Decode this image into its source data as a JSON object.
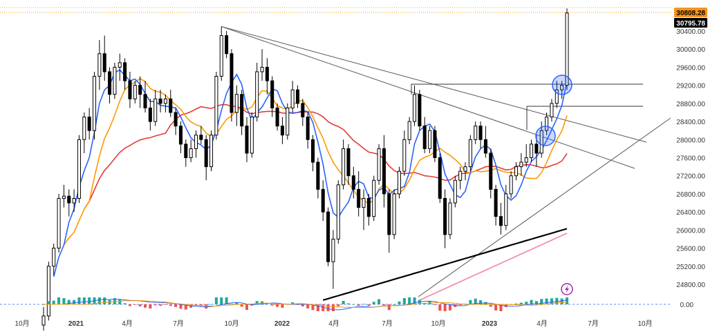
{
  "chart_data": {
    "type": "candlestick",
    "y_ticks": [
      "30400.00",
      "30000.00",
      "29600.00",
      "29200.00",
      "28800.00",
      "28400.00",
      "28000.00",
      "27600.00",
      "27200.00",
      "26800.00",
      "26400.00",
      "26000.00",
      "25600.00",
      "25200.00",
      "24800.00"
    ],
    "x_ticks": [
      "10月",
      "2021",
      "4月",
      "7月",
      "10月",
      "2022",
      "4月",
      "7月",
      "10月",
      "2023",
      "4月",
      "7月",
      "10月"
    ],
    "price_labels": [
      {
        "text": "30808.28",
        "value": 30808.28,
        "color": "#f7931a",
        "text_color": "#000000"
      },
      {
        "text": "30795.78",
        "value": 30795.78,
        "color": "#000000",
        "text_color": "#ffffff"
      }
    ],
    "indicator_zero_label": "0.00",
    "lightning_icon_color": "#9c27b0",
    "series_colors": {
      "ma_fast": "#2962ff",
      "ma_mid": "#ff9800",
      "ma_slow": "#e53935",
      "ma_long": "#000000",
      "ma_pink": "#f48fb1",
      "candle": "#000000"
    },
    "candles": [
      [
        23900,
        24300,
        23700,
        24100
      ],
      [
        24100,
        25300,
        24000,
        25200
      ],
      [
        25200,
        25700,
        25000,
        25600
      ],
      [
        25600,
        26800,
        25500,
        26700
      ],
      [
        26700,
        27000,
        26500,
        26750
      ],
      [
        26750,
        26900,
        26300,
        26600
      ],
      [
        26600,
        26900,
        26400,
        26700
      ],
      [
        26700,
        28100,
        26600,
        28000
      ],
      [
        28000,
        28600,
        27700,
        28500
      ],
      [
        28500,
        28700,
        28000,
        28200
      ],
      [
        28200,
        29500,
        28000,
        29400
      ],
      [
        29400,
        30200,
        29100,
        29900
      ],
      [
        29900,
        30300,
        29300,
        29500
      ],
      [
        29500,
        29600,
        28800,
        29000
      ],
      [
        29000,
        29700,
        28900,
        29600
      ],
      [
        29600,
        29900,
        29300,
        29700
      ],
      [
        29700,
        29800,
        29100,
        29300
      ],
      [
        29300,
        29500,
        28700,
        28900
      ],
      [
        28900,
        29300,
        28800,
        29200
      ],
      [
        29200,
        29400,
        28700,
        29000
      ],
      [
        29000,
        29300,
        28600,
        28700
      ],
      [
        28700,
        28900,
        28200,
        28400
      ],
      [
        28400,
        29100,
        28300,
        28900
      ],
      [
        28900,
        29100,
        28600,
        28800
      ],
      [
        28800,
        29000,
        28600,
        28900
      ],
      [
        28900,
        29100,
        28500,
        28600
      ],
      [
        28600,
        28700,
        28100,
        28300
      ],
      [
        28300,
        28400,
        27700,
        27900
      ],
      [
        27900,
        28000,
        27400,
        27600
      ],
      [
        27600,
        28000,
        27500,
        27800
      ],
      [
        27800,
        28200,
        27600,
        28100
      ],
      [
        28100,
        28300,
        27900,
        28000
      ],
      [
        28000,
        28100,
        27100,
        27400
      ],
      [
        27400,
        28200,
        27300,
        28100
      ],
      [
        28100,
        29500,
        28000,
        29400
      ],
      [
        29400,
        30500,
        29300,
        30300
      ],
      [
        30300,
        30400,
        29800,
        29900
      ],
      [
        29900,
        30000,
        28400,
        28600
      ],
      [
        28600,
        29200,
        28300,
        29000
      ],
      [
        29000,
        29100,
        28100,
        28300
      ],
      [
        28300,
        28500,
        27500,
        27700
      ],
      [
        27700,
        28600,
        27600,
        28500
      ],
      [
        28500,
        29700,
        28400,
        29500
      ],
      [
        29500,
        30000,
        29300,
        29600
      ],
      [
        29600,
        29800,
        29000,
        29300
      ],
      [
        29300,
        29400,
        28500,
        28700
      ],
      [
        28700,
        28800,
        28200,
        28300
      ],
      [
        28300,
        28500,
        27900,
        28100
      ],
      [
        28100,
        28800,
        28000,
        28700
      ],
      [
        28700,
        29300,
        28600,
        29100
      ],
      [
        29100,
        29200,
        28700,
        28800
      ],
      [
        28800,
        28900,
        28300,
        28500
      ],
      [
        28500,
        28600,
        27800,
        28000
      ],
      [
        28000,
        28100,
        27300,
        27500
      ],
      [
        27500,
        27600,
        26700,
        26900
      ],
      [
        26900,
        27100,
        26200,
        26400
      ],
      [
        26400,
        26500,
        25200,
        25300
      ],
      [
        25300,
        26000,
        24700,
        25800
      ],
      [
        25800,
        27100,
        25700,
        27000
      ],
      [
        27000,
        28000,
        26900,
        27800
      ],
      [
        27800,
        27900,
        27000,
        27200
      ],
      [
        27200,
        27400,
        26700,
        26900
      ],
      [
        26900,
        27300,
        26300,
        26500
      ],
      [
        26500,
        26900,
        26000,
        26700
      ],
      [
        26700,
        26800,
        26100,
        26300
      ],
      [
        26300,
        27200,
        26200,
        27100
      ],
      [
        27100,
        27900,
        27000,
        27800
      ],
      [
        27800,
        28100,
        26500,
        26800
      ],
      [
        26800,
        26900,
        25500,
        25900
      ],
      [
        25900,
        26900,
        25800,
        26800
      ],
      [
        26800,
        27400,
        26700,
        27300
      ],
      [
        27300,
        28200,
        27200,
        28000
      ],
      [
        28000,
        28500,
        27900,
        28400
      ],
      [
        28400,
        29200,
        28300,
        29000
      ],
      [
        29000,
        29100,
        28200,
        28300
      ],
      [
        28300,
        28500,
        27700,
        27800
      ],
      [
        27800,
        28300,
        27700,
        28200
      ],
      [
        28200,
        28300,
        27500,
        27600
      ],
      [
        27600,
        27700,
        26600,
        26700
      ],
      [
        26700,
        26900,
        25600,
        25900
      ],
      [
        25900,
        26700,
        25800,
        26600
      ],
      [
        26600,
        27200,
        26500,
        27100
      ],
      [
        27100,
        27400,
        26900,
        27300
      ],
      [
        27300,
        27500,
        27100,
        27400
      ],
      [
        27400,
        28100,
        27300,
        28000
      ],
      [
        28000,
        28400,
        27900,
        28300
      ],
      [
        28300,
        28400,
        27800,
        28000
      ],
      [
        28000,
        28300,
        27600,
        27700
      ],
      [
        27700,
        27800,
        26700,
        26900
      ],
      [
        26900,
        27000,
        26100,
        26300
      ],
      [
        26300,
        26600,
        25900,
        26100
      ],
      [
        26100,
        27000,
        26000,
        26800
      ],
      [
        26800,
        27300,
        26700,
        27200
      ],
      [
        27200,
        27500,
        27100,
        27400
      ],
      [
        27400,
        27700,
        27200,
        27500
      ],
      [
        27500,
        27900,
        27400,
        27600
      ],
      [
        27600,
        28000,
        27500,
        27900
      ],
      [
        27900,
        28100,
        27400,
        27700
      ],
      [
        27700,
        28400,
        27600,
        28200
      ],
      [
        28200,
        28600,
        28100,
        28500
      ],
      [
        28500,
        28900,
        28400,
        28800
      ],
      [
        28800,
        29300,
        28700,
        29100
      ],
      [
        29100,
        29300,
        28900,
        29200
      ],
      [
        29200,
        30900,
        29100,
        30800
      ]
    ]
  }
}
